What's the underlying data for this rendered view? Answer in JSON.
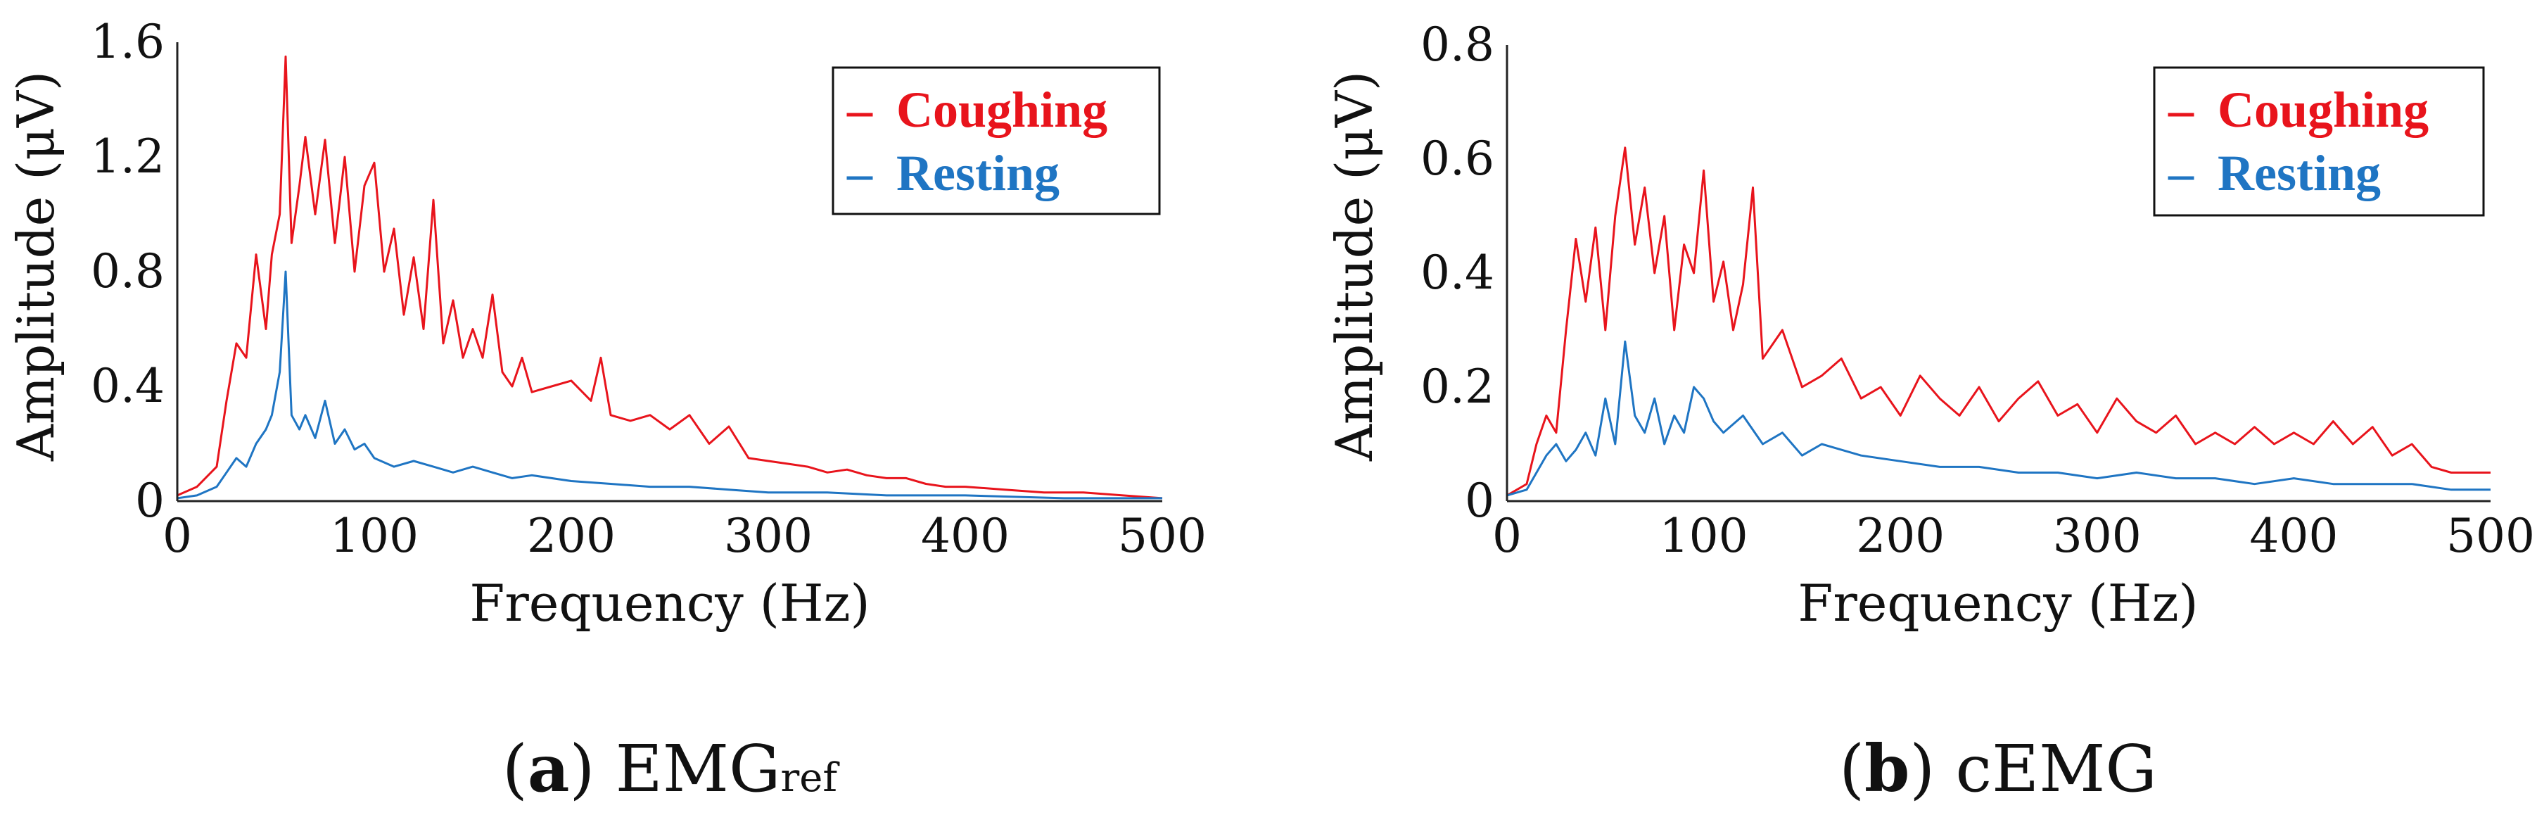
{
  "panels": [
    {
      "caption": {
        "prefix": "(",
        "letter": "a",
        "suffix": ") ",
        "text": "EMG",
        "subscript": "ref"
      },
      "ylabel": "Amplitude (μV)",
      "xlabel": "Frequency (Hz)",
      "x_ticks": [
        "0",
        "100",
        "200",
        "300",
        "400",
        "500"
      ],
      "y_ticks": [
        "0",
        "0.4",
        "0.8",
        "1.2",
        "1.6"
      ],
      "legend": [
        {
          "label": "Coughing",
          "marker": "–",
          "color": "#e8141c"
        },
        {
          "label": "Resting",
          "marker": "–",
          "color": "#1f75c3"
        }
      ]
    },
    {
      "caption": {
        "prefix": "(",
        "letter": "b",
        "suffix": ") ",
        "text": "cEMG",
        "subscript": ""
      },
      "ylabel": "Amplitude (μV)",
      "xlabel": "Frequency (Hz)",
      "x_ticks": [
        "0",
        "100",
        "200",
        "300",
        "400",
        "500"
      ],
      "y_ticks": [
        "0",
        "0.2",
        "0.4",
        "0.6",
        "0.8"
      ],
      "legend": [
        {
          "label": "Coughing",
          "marker": "–",
          "color": "#e8141c"
        },
        {
          "label": "Resting",
          "marker": "–",
          "color": "#1f75c3"
        }
      ]
    }
  ],
  "chart_data": [
    {
      "type": "line",
      "title": "",
      "xlabel": "Frequency (Hz)",
      "ylabel": "Amplitude (μV)",
      "xlim": [
        0,
        500
      ],
      "ylim": [
        0,
        1.6
      ],
      "grid": false,
      "legend_position": "top-right",
      "series": [
        {
          "name": "Coughing",
          "color": "#e8141c",
          "x": [
            0,
            10,
            20,
            25,
            30,
            35,
            40,
            45,
            48,
            52,
            55,
            58,
            62,
            65,
            70,
            75,
            80,
            85,
            90,
            95,
            100,
            105,
            110,
            115,
            120,
            125,
            130,
            135,
            140,
            145,
            150,
            155,
            160,
            165,
            170,
            175,
            180,
            190,
            200,
            210,
            215,
            220,
            230,
            240,
            250,
            260,
            270,
            280,
            290,
            300,
            310,
            320,
            330,
            340,
            350,
            360,
            370,
            380,
            390,
            400,
            420,
            440,
            460,
            480,
            500
          ],
          "y": [
            0.02,
            0.05,
            0.12,
            0.35,
            0.55,
            0.5,
            0.86,
            0.6,
            0.86,
            1.0,
            1.55,
            0.9,
            1.1,
            1.27,
            1.0,
            1.26,
            0.9,
            1.2,
            0.8,
            1.1,
            1.18,
            0.8,
            0.95,
            0.65,
            0.85,
            0.6,
            1.05,
            0.55,
            0.7,
            0.5,
            0.6,
            0.5,
            0.72,
            0.45,
            0.4,
            0.5,
            0.38,
            0.4,
            0.42,
            0.35,
            0.5,
            0.3,
            0.28,
            0.3,
            0.25,
            0.3,
            0.2,
            0.26,
            0.15,
            0.14,
            0.13,
            0.12,
            0.1,
            0.11,
            0.09,
            0.08,
            0.08,
            0.06,
            0.05,
            0.05,
            0.04,
            0.03,
            0.03,
            0.02,
            0.01
          ]
        },
        {
          "name": "Resting",
          "color": "#1f75c3",
          "x": [
            0,
            10,
            20,
            25,
            30,
            35,
            40,
            45,
            48,
            52,
            55,
            58,
            62,
            65,
            70,
            75,
            80,
            85,
            90,
            95,
            100,
            110,
            120,
            130,
            140,
            150,
            160,
            170,
            180,
            200,
            220,
            240,
            260,
            280,
            300,
            330,
            360,
            400,
            450,
            500
          ],
          "y": [
            0.01,
            0.02,
            0.05,
            0.1,
            0.15,
            0.12,
            0.2,
            0.25,
            0.3,
            0.45,
            0.8,
            0.3,
            0.25,
            0.3,
            0.22,
            0.35,
            0.2,
            0.25,
            0.18,
            0.2,
            0.15,
            0.12,
            0.14,
            0.12,
            0.1,
            0.12,
            0.1,
            0.08,
            0.09,
            0.07,
            0.06,
            0.05,
            0.05,
            0.04,
            0.03,
            0.03,
            0.02,
            0.02,
            0.01,
            0.01
          ]
        }
      ]
    },
    {
      "type": "line",
      "title": "",
      "xlabel": "Frequency (Hz)",
      "ylabel": "Amplitude (μV)",
      "xlim": [
        0,
        500
      ],
      "ylim": [
        0,
        0.8
      ],
      "grid": false,
      "legend_position": "top-right",
      "series": [
        {
          "name": "Coughing",
          "color": "#e8141c",
          "x": [
            0,
            10,
            15,
            20,
            25,
            30,
            35,
            40,
            45,
            50,
            55,
            60,
            65,
            70,
            75,
            80,
            85,
            90,
            95,
            100,
            105,
            110,
            115,
            120,
            125,
            130,
            140,
            150,
            160,
            170,
            180,
            190,
            200,
            210,
            220,
            230,
            240,
            250,
            260,
            270,
            280,
            290,
            300,
            310,
            320,
            330,
            340,
            350,
            360,
            370,
            380,
            390,
            400,
            410,
            420,
            430,
            440,
            450,
            460,
            470,
            480,
            490,
            500
          ],
          "y": [
            0.01,
            0.03,
            0.1,
            0.15,
            0.12,
            0.3,
            0.46,
            0.35,
            0.48,
            0.3,
            0.5,
            0.62,
            0.45,
            0.55,
            0.4,
            0.5,
            0.3,
            0.45,
            0.4,
            0.58,
            0.35,
            0.42,
            0.3,
            0.38,
            0.55,
            0.25,
            0.3,
            0.2,
            0.22,
            0.25,
            0.18,
            0.2,
            0.15,
            0.22,
            0.18,
            0.15,
            0.2,
            0.14,
            0.18,
            0.21,
            0.15,
            0.17,
            0.12,
            0.18,
            0.14,
            0.12,
            0.15,
            0.1,
            0.12,
            0.1,
            0.13,
            0.1,
            0.12,
            0.1,
            0.14,
            0.1,
            0.13,
            0.08,
            0.1,
            0.06,
            0.05,
            0.05,
            0.05
          ]
        },
        {
          "name": "Resting",
          "color": "#1f75c3",
          "x": [
            0,
            10,
            20,
            25,
            30,
            35,
            40,
            45,
            50,
            55,
            60,
            65,
            70,
            75,
            80,
            85,
            90,
            95,
            100,
            105,
            110,
            120,
            130,
            140,
            150,
            160,
            180,
            200,
            220,
            240,
            260,
            280,
            300,
            320,
            340,
            360,
            380,
            400,
            420,
            440,
            460,
            480,
            500
          ],
          "y": [
            0.01,
            0.02,
            0.08,
            0.1,
            0.07,
            0.09,
            0.12,
            0.08,
            0.18,
            0.1,
            0.28,
            0.15,
            0.12,
            0.18,
            0.1,
            0.15,
            0.12,
            0.2,
            0.18,
            0.14,
            0.12,
            0.15,
            0.1,
            0.12,
            0.08,
            0.1,
            0.08,
            0.07,
            0.06,
            0.06,
            0.05,
            0.05,
            0.04,
            0.05,
            0.04,
            0.04,
            0.03,
            0.04,
            0.03,
            0.03,
            0.03,
            0.02,
            0.02
          ]
        }
      ]
    }
  ]
}
